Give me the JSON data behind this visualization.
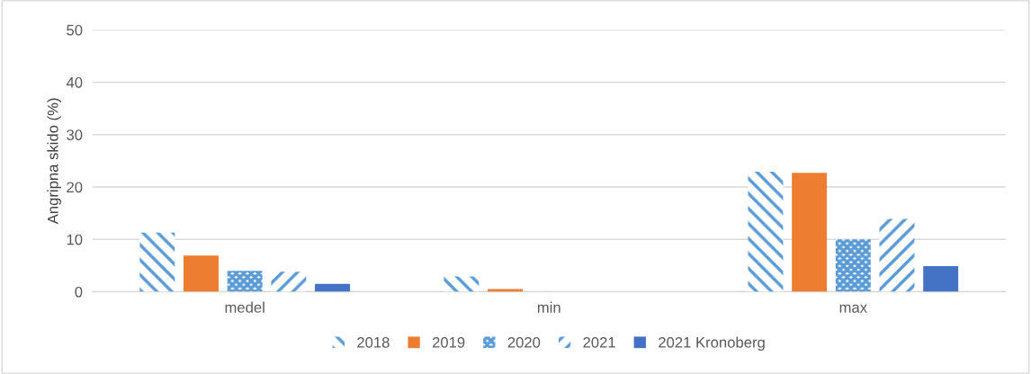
{
  "chart_data": {
    "type": "bar",
    "ylabel": "Angripna skido (%)",
    "categories": [
      "medel",
      "min",
      "max"
    ],
    "series": [
      {
        "name": "2018",
        "color": "#5b9bd5",
        "values": [
          11.3,
          2.9,
          22.9
        ]
      },
      {
        "name": "2019",
        "color": "#ed7d31",
        "values": [
          6.9,
          0.5,
          22.7
        ]
      },
      {
        "name": "2020",
        "color": "#5b9bd5",
        "values": [
          4.0,
          0,
          10.0
        ]
      },
      {
        "name": "2021",
        "color": "#5b9bd5",
        "values": [
          3.8,
          0,
          13.9
        ]
      },
      {
        "name": "2021 Kronoberg",
        "color": "#4472c4",
        "values": [
          1.5,
          0,
          4.9
        ]
      }
    ],
    "ylim": [
      0,
      50
    ],
    "yticks": [
      0,
      10,
      20,
      30,
      40,
      50
    ],
    "grid": "y",
    "legend": "bottom"
  }
}
